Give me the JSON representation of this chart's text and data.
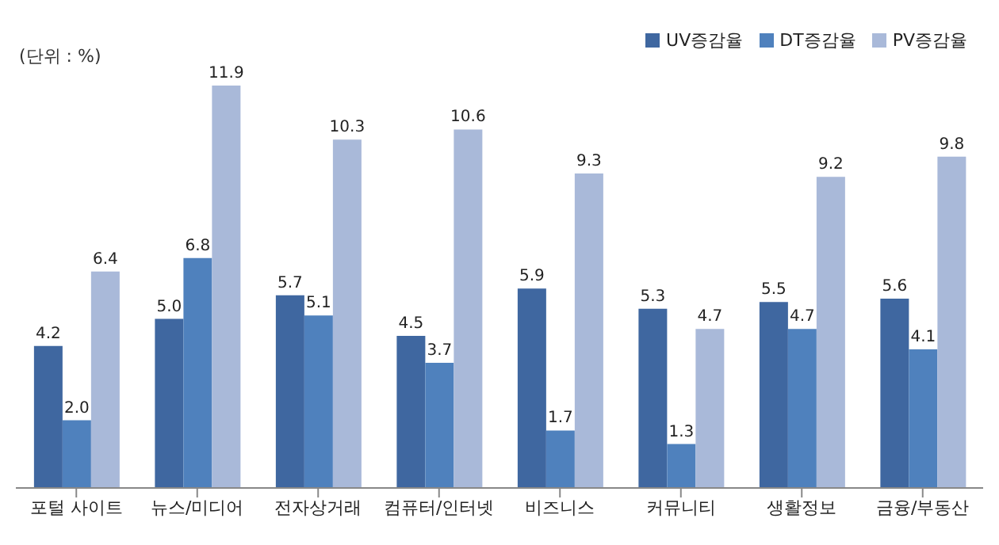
{
  "chart_data": {
    "type": "bar",
    "categories": [
      "포털 사이트",
      "뉴스/미디어",
      "전자상거래",
      "컴퓨터/인터넷",
      "비즈니스",
      "커뮤니티",
      "생활정보",
      "금융/부동산"
    ],
    "series": [
      {
        "name": "UV증감율",
        "color": "#3f67a0",
        "values": [
          4.2,
          5.0,
          5.7,
          4.5,
          5.9,
          5.3,
          5.5,
          5.6
        ],
        "value_labels": [
          "4.2",
          "5.0",
          "5.7",
          "4.5",
          "5.9",
          "5.3",
          "5.5",
          "5.6"
        ]
      },
      {
        "name": "DT증감율",
        "color": "#4f81bd",
        "values": [
          2.0,
          6.8,
          5.1,
          3.7,
          1.7,
          1.3,
          4.7,
          4.1
        ],
        "value_labels": [
          "2.0",
          "6.8",
          "5.1",
          "3.7",
          "1.7",
          "1.3",
          "4.7",
          "4.1"
        ]
      },
      {
        "name": "PV증감율",
        "color": "#a9b9d9",
        "values": [
          6.4,
          11.9,
          10.3,
          10.6,
          9.3,
          4.7,
          9.2,
          9.8
        ],
        "value_labels": [
          "6.4",
          "11.9",
          "10.3",
          "10.6",
          "9.3",
          "4.7",
          "9.2",
          "9.8"
        ]
      }
    ],
    "annotations": [
      "(단위 : %)"
    ],
    "legend": "top right",
    "grid": false
  }
}
